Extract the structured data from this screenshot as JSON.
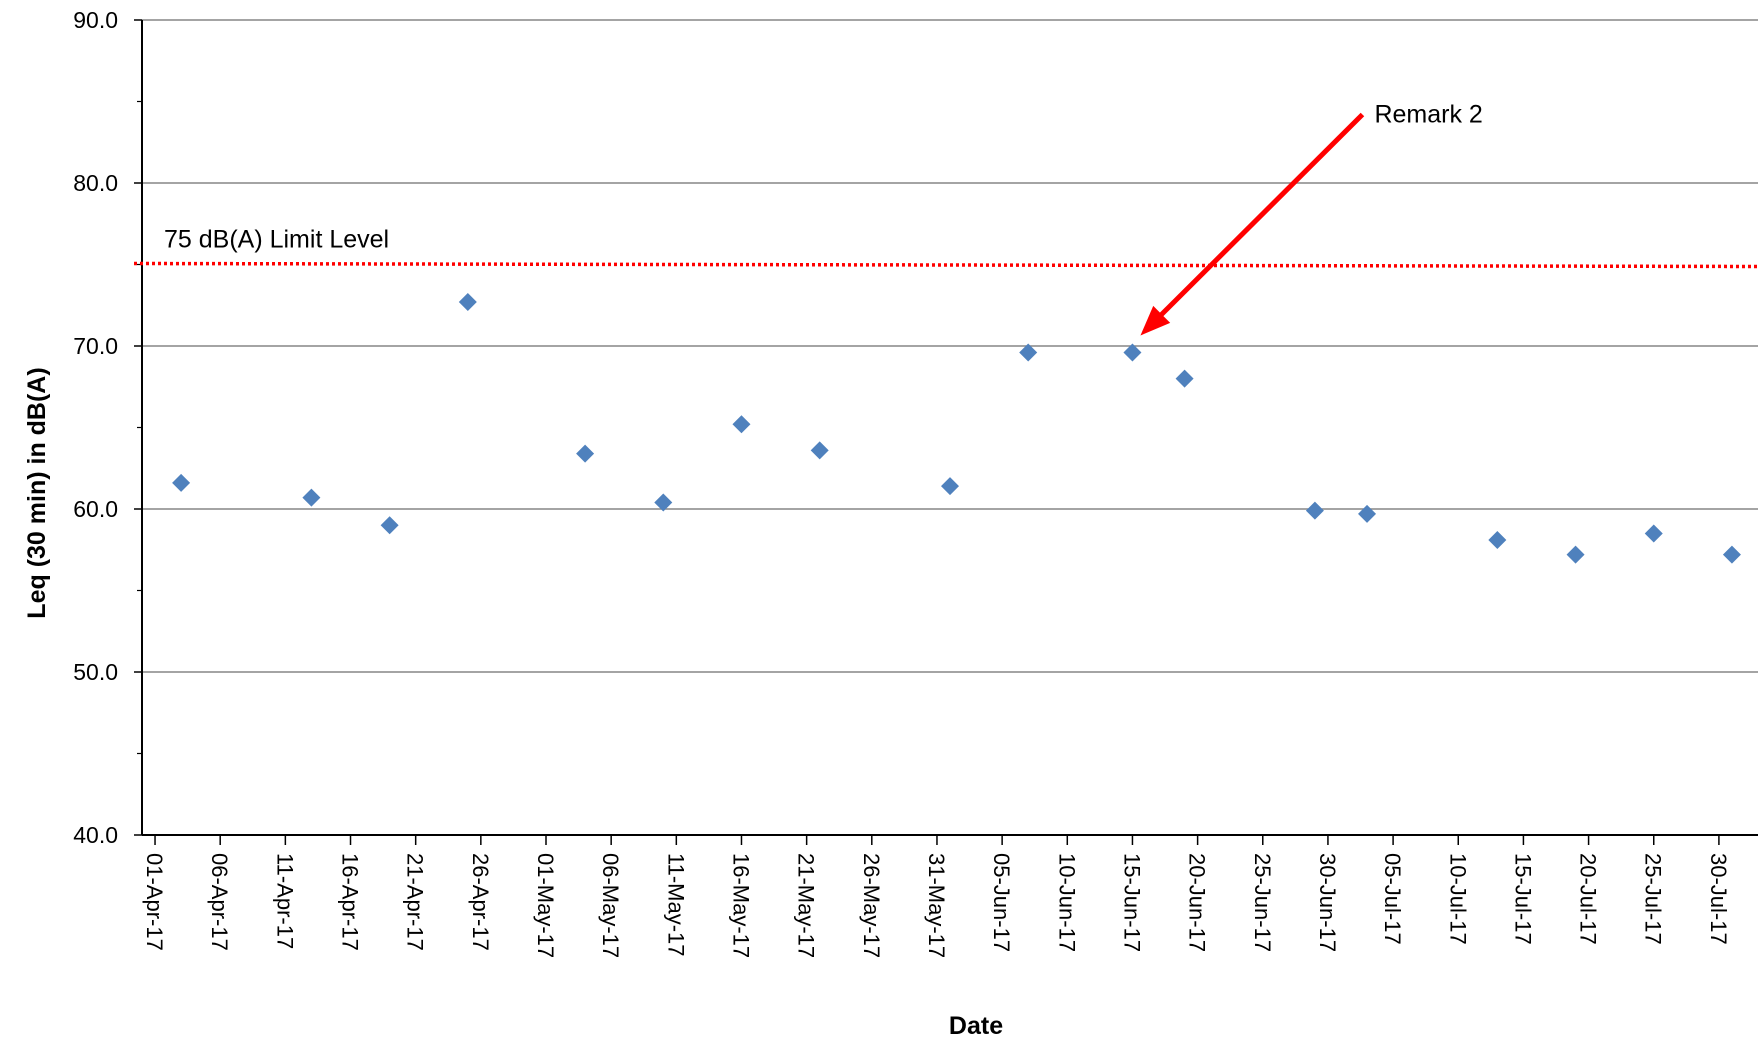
{
  "chart_data": {
    "type": "scatter",
    "title": "",
    "xlabel": "Date",
    "ylabel": "Leq (30 min) in dB(A)",
    "ylim": [
      40.0,
      90.0
    ],
    "yticks": [
      "40.0",
      "50.0",
      "60.0",
      "70.0",
      "80.0",
      "90.0"
    ],
    "xlim": [
      "2017-03-31",
      "2017-08-02"
    ],
    "xticks": [
      {
        "date": "2017-04-01",
        "label": "01-Apr-17"
      },
      {
        "date": "2017-04-06",
        "label": "06-Apr-17"
      },
      {
        "date": "2017-04-11",
        "label": "11-Apr-17"
      },
      {
        "date": "2017-04-16",
        "label": "16-Apr-17"
      },
      {
        "date": "2017-04-21",
        "label": "21-Apr-17"
      },
      {
        "date": "2017-04-26",
        "label": "26-Apr-17"
      },
      {
        "date": "2017-05-01",
        "label": "01-May-17"
      },
      {
        "date": "2017-05-06",
        "label": "06-May-17"
      },
      {
        "date": "2017-05-11",
        "label": "11-May-17"
      },
      {
        "date": "2017-05-16",
        "label": "16-May-17"
      },
      {
        "date": "2017-05-21",
        "label": "21-May-17"
      },
      {
        "date": "2017-05-26",
        "label": "26-May-17"
      },
      {
        "date": "2017-05-31",
        "label": "31-May-17"
      },
      {
        "date": "2017-06-05",
        "label": "05-Jun-17"
      },
      {
        "date": "2017-06-10",
        "label": "10-Jun-17"
      },
      {
        "date": "2017-06-15",
        "label": "15-Jun-17"
      },
      {
        "date": "2017-06-20",
        "label": "20-Jun-17"
      },
      {
        "date": "2017-06-25",
        "label": "25-Jun-17"
      },
      {
        "date": "2017-06-30",
        "label": "30-Jun-17"
      },
      {
        "date": "2017-07-05",
        "label": "05-Jul-17"
      },
      {
        "date": "2017-07-10",
        "label": "10-Jul-17"
      },
      {
        "date": "2017-07-15",
        "label": "15-Jul-17"
      },
      {
        "date": "2017-07-20",
        "label": "20-Jul-17"
      },
      {
        "date": "2017-07-25",
        "label": "25-Jul-17"
      },
      {
        "date": "2017-07-30",
        "label": "30-Jul-17"
      }
    ],
    "grid": "horizontal major gridlines",
    "series": [
      {
        "name": "",
        "color": "#4F81BD",
        "marker": "diamond",
        "points": [
          {
            "x": "2017-04-03",
            "y": 61.6
          },
          {
            "x": "2017-04-13",
            "y": 60.7
          },
          {
            "x": "2017-04-19",
            "y": 59.0
          },
          {
            "x": "2017-04-25",
            "y": 72.7
          },
          {
            "x": "2017-05-04",
            "y": 63.4
          },
          {
            "x": "2017-05-10",
            "y": 60.4
          },
          {
            "x": "2017-05-16",
            "y": 65.2
          },
          {
            "x": "2017-05-22",
            "y": 63.6
          },
          {
            "x": "2017-06-01",
            "y": 61.4
          },
          {
            "x": "2017-06-07",
            "y": 69.6
          },
          {
            "x": "2017-06-15",
            "y": 69.6
          },
          {
            "x": "2017-06-19",
            "y": 68.0
          },
          {
            "x": "2017-06-29",
            "y": 59.9
          },
          {
            "x": "2017-07-03",
            "y": 59.7
          },
          {
            "x": "2017-07-13",
            "y": 58.1
          },
          {
            "x": "2017-07-19",
            "y": 57.2
          },
          {
            "x": "2017-07-25",
            "y": 58.5
          },
          {
            "x": "2017-07-31",
            "y": 57.2
          }
        ]
      }
    ],
    "limit_line": {
      "value": 75.0,
      "label": "75 dB(A) Limit Level",
      "color": "#FF0000",
      "style": "dotted"
    },
    "annotations": [
      {
        "text": "Remark 2",
        "color": "#FF0000",
        "points_to": {
          "x": "2017-06-15",
          "y": 69.6
        }
      }
    ]
  }
}
